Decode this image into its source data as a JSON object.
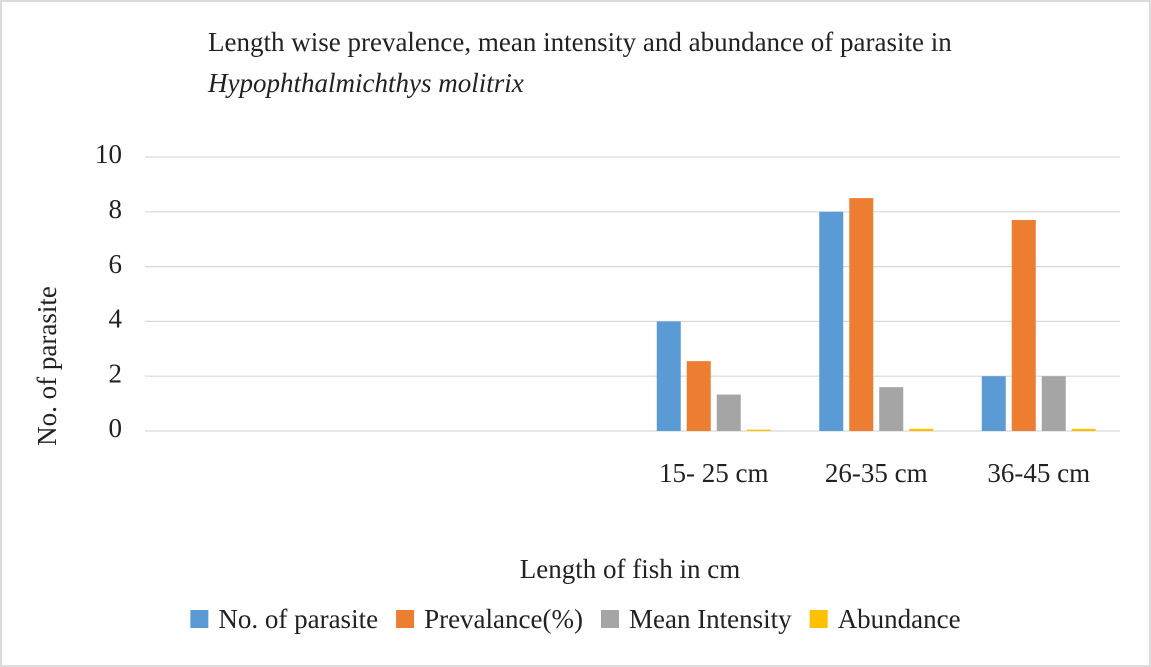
{
  "chart_data": {
    "type": "bar",
    "title": "Length wise prevalence, mean intensity and abundance of parasite in",
    "title_species": "Hypophthalmichthys molitrix",
    "x_label": "Length of fish in cm",
    "y_label": "No. of parasite",
    "categories": [
      null,
      null,
      null,
      "15- 25 cm",
      "26-35 cm",
      "36-45 cm"
    ],
    "series": [
      {
        "name": "No. of parasite",
        "color": "#5b9bd5",
        "values": [
          null,
          null,
          null,
          4,
          8,
          2
        ]
      },
      {
        "name": "Prevalance(%)",
        "color": "#ed7d31",
        "values": [
          null,
          null,
          null,
          2.55,
          8.5,
          7.7
        ]
      },
      {
        "name": "Mean Intensity",
        "color": "#a5a5a5",
        "values": [
          null,
          null,
          null,
          1.33,
          1.6,
          2
        ]
      },
      {
        "name": "Abundance",
        "color": "#ffc000",
        "values": [
          null,
          null,
          null,
          0.05,
          0.08,
          0.08
        ]
      }
    ],
    "ylim": [
      0,
      10
    ],
    "yticks": [
      0,
      2,
      4,
      6,
      8,
      10
    ],
    "grid": true,
    "legend": "bottom"
  }
}
